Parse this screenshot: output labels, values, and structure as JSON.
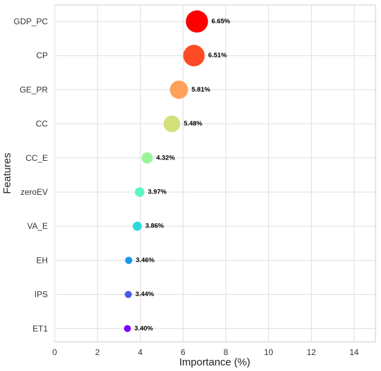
{
  "chart_data": {
    "type": "scatter",
    "xlabel": "Importance (%)",
    "ylabel": "Features",
    "xlim": [
      0,
      15
    ],
    "x_ticks": [
      0,
      2,
      4,
      6,
      8,
      10,
      12,
      14
    ],
    "grid": true,
    "categories": [
      "GDP_PC",
      "CP",
      "GE_PR",
      "CC",
      "CC_E",
      "zeroEV",
      "VA_E",
      "EH",
      "IPS",
      "ET1"
    ],
    "values": [
      6.65,
      6.51,
      5.81,
      5.48,
      4.32,
      3.97,
      3.86,
      3.46,
      3.44,
      3.4
    ],
    "data_labels": [
      "6.65%",
      "6.51%",
      "5.81%",
      "5.48%",
      "4.32%",
      "3.97%",
      "3.86%",
      "3.46%",
      "3.44%",
      "3.40%"
    ],
    "colors": [
      "#ff0000",
      "#ff4a26",
      "#ffa15a",
      "#d4e07c",
      "#9af59a",
      "#5cf7c4",
      "#2ad9dd",
      "#1a98e6",
      "#4a5ae8",
      "#7f00ff"
    ]
  }
}
